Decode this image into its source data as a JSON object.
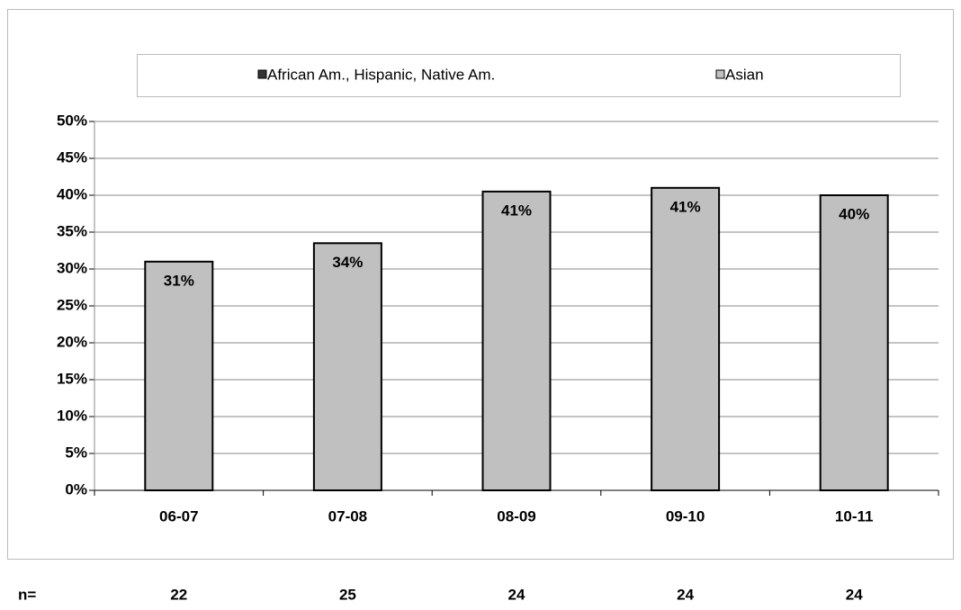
{
  "chart_data": {
    "type": "bar",
    "stacked": true,
    "categories": [
      "06-07",
      "07-08",
      "08-09",
      "09-10",
      "10-11"
    ],
    "series": [
      {
        "name": "African Am., Hispanic, Native Am.",
        "color": "#333333",
        "values": [
          0,
          0,
          0,
          0,
          0
        ]
      },
      {
        "name": "Asian",
        "color": "#c0c0c0",
        "values": [
          31,
          33.5,
          40.5,
          41,
          40
        ],
        "value_labels": [
          "31%",
          "34%",
          "41%",
          "41%",
          "40%"
        ]
      }
    ],
    "ylim": [
      0,
      50
    ],
    "yticks": [
      {
        "value": 0,
        "label": "0%"
      },
      {
        "value": 5,
        "label": "5%"
      },
      {
        "value": 10,
        "label": "10%"
      },
      {
        "value": 15,
        "label": "15%"
      },
      {
        "value": 20,
        "label": "20%"
      },
      {
        "value": 25,
        "label": "25%"
      },
      {
        "value": 30,
        "label": "30%"
      },
      {
        "value": 35,
        "label": "35%"
      },
      {
        "value": 40,
        "label": "40%"
      },
      {
        "value": 45,
        "label": "45%"
      },
      {
        "value": 50,
        "label": "50%"
      }
    ],
    "grid": true,
    "legend": "top",
    "n_label": "n=",
    "n_values": [
      22,
      25,
      24,
      24,
      24
    ]
  }
}
